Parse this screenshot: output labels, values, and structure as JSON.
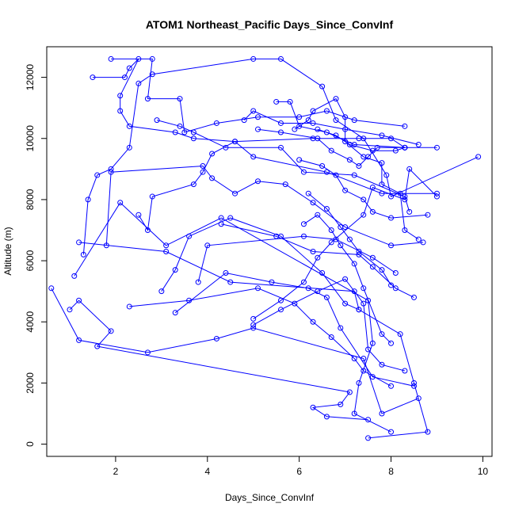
{
  "chart_data": {
    "type": "line",
    "title": "ATOM1 Northeast_Pacific Days_Since_ConvInf",
    "xlabel": "Days_Since_ConvInf",
    "ylabel": "Altitude (m)",
    "xlim": [
      0.5,
      10.2
    ],
    "ylim": [
      -400,
      13000
    ],
    "xticks": [
      2,
      4,
      6,
      8,
      10
    ],
    "yticks": [
      0,
      2000,
      4000,
      6000,
      8000,
      10000,
      12000
    ],
    "grid": false,
    "color": "#0000ff",
    "series": [
      {
        "points": [
          [
            0.6,
            5100
          ],
          [
            1.2,
            3400
          ],
          [
            2.7,
            3000
          ],
          [
            4.2,
            3450
          ],
          [
            5.0,
            3800
          ],
          [
            7.4,
            2800
          ],
          [
            7.8,
            1000
          ],
          [
            8.6,
            1500
          ]
        ]
      },
      {
        "points": [
          [
            1.0,
            4400
          ],
          [
            1.2,
            4700
          ],
          [
            1.9,
            3700
          ],
          [
            1.6,
            3200
          ],
          [
            7.1,
            1700
          ],
          [
            6.9,
            1300
          ],
          [
            6.3,
            1200
          ],
          [
            6.6,
            900
          ],
          [
            7.5,
            800
          ]
        ]
      },
      {
        "points": [
          [
            1.1,
            5500
          ],
          [
            2.1,
            7900
          ],
          [
            3.1,
            6500
          ],
          [
            4.3,
            7400
          ],
          [
            7.5,
            4700
          ],
          [
            7.6,
            3300
          ],
          [
            7.3,
            2000
          ],
          [
            7.2,
            1000
          ],
          [
            8.0,
            400
          ]
        ]
      },
      {
        "points": [
          [
            1.2,
            6600
          ],
          [
            3.1,
            6300
          ],
          [
            4.5,
            5300
          ],
          [
            7.2,
            5000
          ],
          [
            7.3,
            4400
          ],
          [
            8.2,
            3600
          ],
          [
            8.5,
            2000
          ],
          [
            8.8,
            400
          ],
          [
            7.5,
            200
          ]
        ]
      },
      {
        "points": [
          [
            1.3,
            6200
          ],
          [
            1.4,
            8000
          ],
          [
            1.6,
            8800
          ],
          [
            1.9,
            9000
          ],
          [
            2.3,
            9700
          ],
          [
            2.5,
            11800
          ],
          [
            2.8,
            12100
          ],
          [
            5.0,
            12600
          ],
          [
            5.6,
            12600
          ],
          [
            6.5,
            11700
          ],
          [
            6.8,
            10600
          ],
          [
            7.4,
            10000
          ],
          [
            7.9,
            8800
          ],
          [
            8.0,
            8100
          ],
          [
            9.9,
            9400
          ]
        ]
      },
      {
        "points": [
          [
            1.5,
            12000
          ],
          [
            2.2,
            12000
          ],
          [
            2.3,
            12300
          ],
          [
            2.5,
            12600
          ],
          [
            2.1,
            11400
          ],
          [
            2.1,
            10900
          ],
          [
            2.3,
            10400
          ],
          [
            3.3,
            10200
          ],
          [
            3.7,
            10000
          ],
          [
            4.6,
            9900
          ],
          [
            6.3,
            10000
          ],
          [
            7.3,
            10000
          ],
          [
            8.0,
            10000
          ],
          [
            8.3,
            9700
          ]
        ]
      },
      {
        "points": [
          [
            1.9,
            12600
          ],
          [
            2.8,
            12600
          ],
          [
            2.7,
            11300
          ],
          [
            3.4,
            11300
          ],
          [
            3.5,
            10200
          ],
          [
            4.2,
            10500
          ],
          [
            5.1,
            10700
          ],
          [
            6.0,
            10700
          ],
          [
            6.6,
            10900
          ],
          [
            7.2,
            10600
          ],
          [
            8.3,
            10400
          ]
        ]
      },
      {
        "points": [
          [
            1.8,
            6500
          ],
          [
            1.9,
            8900
          ],
          [
            3.9,
            9100
          ],
          [
            4.1,
            8700
          ],
          [
            4.6,
            8200
          ],
          [
            5.1,
            8600
          ],
          [
            5.7,
            8500
          ],
          [
            6.3,
            7900
          ],
          [
            7.0,
            7100
          ],
          [
            8.0,
            6500
          ],
          [
            8.7,
            6600
          ]
        ]
      },
      {
        "points": [
          [
            2.3,
            4500
          ],
          [
            3.6,
            4700
          ],
          [
            5.1,
            5100
          ],
          [
            5.9,
            4600
          ],
          [
            6.3,
            4000
          ],
          [
            6.7,
            3500
          ],
          [
            7.2,
            2800
          ],
          [
            7.4,
            2400
          ],
          [
            8.0,
            1900
          ]
        ]
      },
      {
        "points": [
          [
            2.5,
            7500
          ],
          [
            2.7,
            7000
          ],
          [
            2.8,
            8100
          ],
          [
            3.7,
            8500
          ],
          [
            3.9,
            8900
          ],
          [
            4.1,
            9500
          ],
          [
            4.6,
            9900
          ],
          [
            5.0,
            9400
          ],
          [
            6.6,
            8900
          ],
          [
            7.8,
            8200
          ],
          [
            9.0,
            8200
          ]
        ]
      },
      {
        "points": [
          [
            3.0,
            5000
          ],
          [
            3.3,
            5700
          ],
          [
            3.6,
            6800
          ],
          [
            4.5,
            7400
          ],
          [
            5.6,
            6800
          ],
          [
            6.5,
            5600
          ],
          [
            7.0,
            4600
          ],
          [
            7.3,
            4400
          ]
        ]
      },
      {
        "points": [
          [
            3.3,
            4300
          ],
          [
            4.4,
            5600
          ],
          [
            5.4,
            5300
          ],
          [
            6.2,
            5100
          ],
          [
            6.6,
            4800
          ],
          [
            6.9,
            3800
          ],
          [
            7.6,
            2200
          ],
          [
            8.5,
            1900
          ]
        ]
      },
      {
        "points": [
          [
            2.9,
            10600
          ],
          [
            3.4,
            10400
          ],
          [
            3.7,
            10200
          ],
          [
            4.4,
            9700
          ],
          [
            5.6,
            9700
          ],
          [
            6.1,
            8900
          ],
          [
            7.2,
            8800
          ],
          [
            8.3,
            8100
          ],
          [
            8.4,
            7600
          ]
        ]
      },
      {
        "points": [
          [
            3.8,
            5300
          ],
          [
            4.0,
            6500
          ],
          [
            6.1,
            6800
          ],
          [
            6.8,
            6700
          ],
          [
            7.6,
            6100
          ],
          [
            8.1,
            5600
          ]
        ]
      },
      {
        "points": [
          [
            4.3,
            7200
          ],
          [
            5.5,
            6800
          ],
          [
            6.3,
            6300
          ],
          [
            7.3,
            6200
          ],
          [
            7.6,
            5800
          ],
          [
            8.1,
            5100
          ],
          [
            8.5,
            4800
          ]
        ]
      },
      {
        "points": [
          [
            4.8,
            10600
          ],
          [
            5.0,
            10900
          ],
          [
            5.6,
            10500
          ],
          [
            6.3,
            10500
          ],
          [
            7.0,
            10300
          ],
          [
            7.8,
            10100
          ],
          [
            8.6,
            9800
          ]
        ]
      },
      {
        "points": [
          [
            5.5,
            11200
          ],
          [
            5.8,
            11200
          ],
          [
            6.0,
            10400
          ],
          [
            6.6,
            10200
          ],
          [
            7.2,
            9800
          ],
          [
            8.3,
            9700
          ]
        ]
      },
      {
        "points": [
          [
            5.0,
            4100
          ],
          [
            5.6,
            4700
          ],
          [
            6.1,
            5300
          ],
          [
            6.4,
            6100
          ],
          [
            6.7,
            6600
          ],
          [
            7.4,
            7500
          ],
          [
            7.6,
            8400
          ],
          [
            8.3,
            8000
          ],
          [
            8.4,
            9000
          ],
          [
            9.0,
            8100
          ]
        ]
      },
      {
        "points": [
          [
            5.0,
            3900
          ],
          [
            5.6,
            4400
          ],
          [
            6.4,
            5000
          ],
          [
            7.0,
            5400
          ],
          [
            7.4,
            4600
          ],
          [
            7.5,
            3100
          ],
          [
            7.8,
            2600
          ],
          [
            8.3,
            2400
          ]
        ]
      },
      {
        "points": [
          [
            5.9,
            10300
          ],
          [
            6.2,
            10600
          ],
          [
            6.3,
            10900
          ],
          [
            6.8,
            11300
          ],
          [
            7.0,
            10700
          ],
          [
            7.0,
            9900
          ],
          [
            7.4,
            9400
          ],
          [
            7.8,
            9200
          ],
          [
            7.8,
            8500
          ],
          [
            8.2,
            8200
          ],
          [
            8.3,
            7000
          ],
          [
            8.6,
            6700
          ]
        ]
      },
      {
        "points": [
          [
            5.1,
            10300
          ],
          [
            5.6,
            10200
          ],
          [
            6.4,
            10000
          ],
          [
            6.7,
            9600
          ],
          [
            7.1,
            9300
          ],
          [
            7.3,
            9100
          ],
          [
            7.5,
            9400
          ],
          [
            7.7,
            9700
          ],
          [
            8.3,
            9700
          ]
        ]
      },
      {
        "points": [
          [
            6.0,
            9300
          ],
          [
            6.5,
            9100
          ],
          [
            6.8,
            8800
          ],
          [
            7.0,
            8300
          ],
          [
            7.4,
            8000
          ],
          [
            7.6,
            7600
          ],
          [
            8.0,
            7400
          ],
          [
            8.8,
            7500
          ]
        ]
      },
      {
        "points": [
          [
            6.2,
            8200
          ],
          [
            6.6,
            7700
          ],
          [
            6.9,
            7100
          ],
          [
            7.1,
            6700
          ],
          [
            7.3,
            6300
          ],
          [
            7.8,
            5700
          ],
          [
            8.0,
            5200
          ]
        ]
      },
      {
        "points": [
          [
            6.1,
            7200
          ],
          [
            6.4,
            7500
          ],
          [
            6.7,
            7000
          ],
          [
            6.9,
            6500
          ],
          [
            7.2,
            5900
          ],
          [
            7.4,
            5100
          ],
          [
            7.8,
            3600
          ],
          [
            8.0,
            3300
          ]
        ]
      },
      {
        "points": [
          [
            6.4,
            10300
          ],
          [
            6.8,
            10100
          ],
          [
            7.1,
            9800
          ],
          [
            7.6,
            9600
          ],
          [
            8.1,
            9600
          ],
          [
            8.3,
            9700
          ],
          [
            9.0,
            9700
          ]
        ]
      }
    ]
  }
}
